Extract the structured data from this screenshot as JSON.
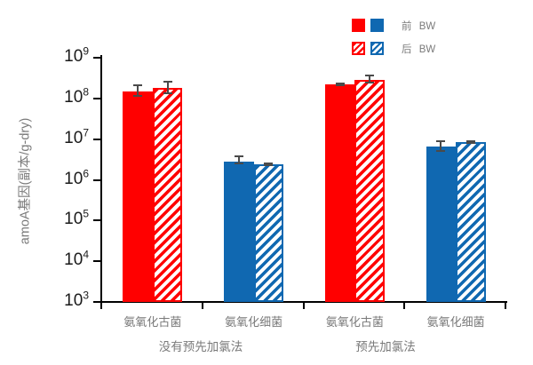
{
  "chart_data": {
    "type": "bar",
    "title": "",
    "ylabel": "amoA基因(副本/g-dry)",
    "xlabel": "",
    "y_axis": {
      "scale": "log10",
      "min_exp": 3,
      "max_exp": 9,
      "tick_base": "10",
      "tick_exponents": [
        9,
        8,
        7,
        6,
        5,
        4,
        3
      ]
    },
    "legend": {
      "position": "top-right",
      "entries": [
        {
          "label": "前 BW",
          "style": "solid"
        },
        {
          "label": "后 BW",
          "style": "hatched"
        }
      ]
    },
    "category_colors": {
      "氨氧化古菌": "#ff0000",
      "氨氧化细菌": "#1068b1"
    },
    "groups": [
      {
        "label": "没有预先加氯法",
        "categories": [
          {
            "label": "氨氧化古菌",
            "color": "#ff0000",
            "bars": [
              {
                "series": "前 BW",
                "style": "solid",
                "value": 150000000.0,
                "whisker_high": 220000000.0,
                "whisker_low": 110000000.0
              },
              {
                "series": "后 BW",
                "style": "hatched",
                "value": 180000000.0,
                "whisker_high": 270000000.0,
                "whisker_low": 125000000.0
              }
            ]
          },
          {
            "label": "氨氧化细菌",
            "color": "#1068b1",
            "bars": [
              {
                "series": "前 BW",
                "style": "solid",
                "value": 2800000.0,
                "whisker_high": 3900000.0,
                "whisker_low": 2400000.0
              },
              {
                "series": "后 BW",
                "style": "hatched",
                "value": 2400000.0,
                "whisker_high": 2700000.0,
                "whisker_low": 2150000.0
              }
            ]
          }
        ]
      },
      {
        "label": "预先加氯法",
        "categories": [
          {
            "label": "氨氧化古菌",
            "color": "#ff0000",
            "bars": [
              {
                "series": "前 BW",
                "style": "solid",
                "value": 220000000.0,
                "whisker_high": 240000000.0,
                "whisker_low": 200000000.0
              },
              {
                "series": "后 BW",
                "style": "hatched",
                "value": 290000000.0,
                "whisker_high": 380000000.0,
                "whisker_low": 230000000.0
              }
            ]
          },
          {
            "label": "氨氧化细菌",
            "color": "#1068b1",
            "bars": [
              {
                "series": "前 BW",
                "style": "solid",
                "value": 6500000.0,
                "whisker_high": 9500000.0,
                "whisker_low": 4800000.0
              },
              {
                "series": "后 BW",
                "style": "hatched",
                "value": 8500000.0,
                "whisker_high": 9300000.0,
                "whisker_low": 7700000.0
              }
            ]
          }
        ]
      }
    ]
  },
  "colors": {
    "axis": "#000000",
    "error_bar": "#4a4a4a",
    "label_gray": "#7a7a7a",
    "tick_label": "#1a1a1a",
    "background": "#ffffff"
  }
}
